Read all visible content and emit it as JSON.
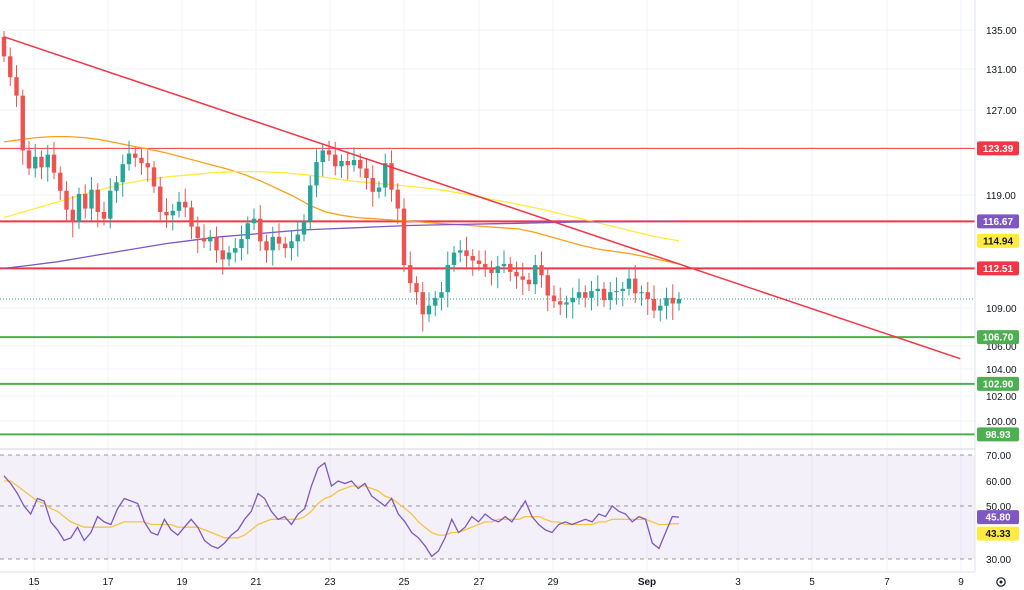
{
  "chart_data": {
    "type": "candlestick",
    "x_ticks": [
      "15",
      "17",
      "19",
      "21",
      "23",
      "25",
      "27",
      "29",
      "Sep",
      "3",
      "5",
      "7",
      "9"
    ],
    "price_axis": {
      "ticks": [
        "135.00",
        "131.00",
        "127.00",
        "119.00",
        "109.00",
        "106.00",
        "104.00",
        "102.00",
        "100.00"
      ],
      "ylim": [
        98,
        136
      ]
    },
    "rsi_axis": {
      "ticks": [
        "70.00",
        "60.00",
        "50.00",
        "30.00"
      ],
      "ylim": [
        28,
        73
      ],
      "band": [
        30,
        70
      ]
    },
    "levels": [
      {
        "label": "123.39",
        "value": 123.39,
        "color": "#f23645",
        "weight": "thin"
      },
      {
        "label": "116.67",
        "value": 116.67,
        "color": "#f23645",
        "weight": "thick"
      },
      {
        "label": "112.51",
        "value": 112.51,
        "color": "#f23645",
        "weight": "thick"
      },
      {
        "label": "106.70",
        "value": 106.7,
        "color": "#4caf50",
        "weight": "thick"
      },
      {
        "label": "102.90",
        "value": 102.9,
        "color": "#4caf50",
        "weight": "thick"
      },
      {
        "label": "98.93",
        "value": 98.93,
        "color": "#4caf50",
        "weight": "thick"
      }
    ],
    "badges": [
      {
        "label": "123.39",
        "value": 123.39,
        "bg": "#f23645",
        "fg": "#ffffff"
      },
      {
        "label": "116.67",
        "value": 116.67,
        "bg": "#7e57c2",
        "fg": "#ffffff"
      },
      {
        "label": "114.94",
        "value": 114.94,
        "bg": "#ffeb3b",
        "fg": "#131722"
      },
      {
        "label": "112.51",
        "value": 112.51,
        "bg": "#f23645",
        "fg": "#ffffff"
      },
      {
        "label": "106.70",
        "value": 106.7,
        "bg": "#4caf50",
        "fg": "#ffffff"
      },
      {
        "label": "102.90",
        "value": 102.9,
        "bg": "#4caf50",
        "fg": "#ffffff"
      },
      {
        "label": "98.93",
        "value": 98.93,
        "bg": "#4caf50",
        "fg": "#ffffff"
      }
    ],
    "rsi_badges": [
      {
        "label": "45.80",
        "value": 45.8,
        "bg": "#7e57c2",
        "fg": "#ffffff"
      },
      {
        "label": "43.33",
        "value": 43.33,
        "bg": "#ffeb3b",
        "fg": "#131722"
      }
    ],
    "trendline": {
      "from": [
        0,
        134.3
      ],
      "to": [
        153,
        104.9
      ],
      "color": "#f23645"
    },
    "close": [
      132.3,
      130.2,
      128.4,
      123.2,
      121.5,
      122.6,
      121.6,
      122.8,
      121.1,
      119.4,
      117.7,
      116.6,
      119.1,
      117.8,
      119.5,
      117.5,
      116.9,
      119.4,
      120.2,
      121.9,
      122.9,
      122.5,
      122.0,
      121.6,
      119.8,
      117.5,
      117.2,
      117.6,
      118.4,
      117.9,
      116.2,
      115.2,
      114.9,
      115.3,
      114.1,
      113.3,
      113.9,
      114.3,
      115.1,
      116.5,
      116.9,
      114.9,
      114.1,
      115.3,
      114.7,
      114.3,
      114.9,
      115.5,
      116.7,
      119.9,
      122.1,
      123.2,
      122.8,
      121.7,
      122.2,
      121.8,
      122.3,
      121.5,
      120.6,
      119.3,
      119.7,
      122.0,
      119.5,
      117.8,
      112.8,
      111.2,
      110.4,
      108.5,
      109.2,
      109.9,
      110.4,
      112.8,
      113.9,
      114.1,
      113.6,
      113.2,
      112.9,
      112.6,
      112.1,
      112.7,
      112.9,
      112.2,
      111.8,
      111.5,
      111.1,
      112.8,
      111.9,
      110.1,
      109.6,
      109.3,
      109.5,
      109.9,
      110.4,
      109.9,
      110.5,
      110.7,
      109.7,
      110.4,
      110.5,
      110.7,
      111.6,
      110.3,
      110.4,
      109.8,
      108.8,
      109.2,
      109.9,
      109.4,
      109.8
    ],
    "open": [
      134.3,
      132.3,
      130.2,
      128.4,
      123.2,
      121.5,
      122.6,
      121.6,
      122.8,
      121.1,
      119.4,
      117.7,
      116.6,
      119.1,
      117.8,
      119.5,
      117.5,
      116.9,
      119.4,
      120.2,
      121.9,
      122.9,
      122.5,
      122.0,
      121.6,
      119.8,
      117.5,
      117.2,
      117.6,
      118.4,
      117.9,
      116.2,
      115.2,
      114.9,
      115.3,
      114.1,
      113.3,
      113.9,
      114.3,
      115.1,
      116.5,
      116.9,
      114.9,
      114.1,
      115.3,
      114.7,
      114.3,
      114.9,
      115.5,
      116.7,
      119.9,
      122.1,
      123.2,
      122.8,
      121.7,
      122.2,
      121.8,
      122.3,
      121.5,
      120.6,
      119.3,
      119.7,
      122.0,
      119.5,
      117.8,
      112.8,
      111.2,
      110.4,
      108.5,
      109.2,
      109.9,
      110.4,
      112.8,
      113.9,
      114.1,
      113.6,
      113.2,
      112.9,
      112.6,
      112.1,
      112.7,
      112.9,
      112.2,
      111.8,
      111.5,
      111.1,
      112.8,
      111.9,
      110.1,
      109.6,
      109.3,
      109.5,
      109.9,
      110.4,
      109.9,
      110.5,
      110.7,
      109.7,
      110.4,
      110.5,
      110.7,
      111.6,
      110.3,
      110.4,
      109.8,
      108.8,
      109.2,
      109.9,
      109.4
    ],
    "rsi": [
      62,
      59,
      55,
      50,
      47,
      53,
      52,
      44,
      41,
      37,
      38,
      42,
      37,
      40,
      46,
      44,
      43,
      49,
      53,
      52,
      51,
      44,
      40,
      39,
      45,
      41,
      39,
      42,
      45,
      42,
      37,
      35,
      34,
      36,
      39,
      41,
      45,
      48,
      55,
      53,
      48,
      45,
      46,
      43,
      47,
      49,
      58,
      65,
      67,
      58,
      60,
      59,
      60,
      57,
      59,
      54,
      52,
      50,
      53,
      47,
      44,
      40,
      38,
      35,
      31,
      33,
      38,
      45,
      40,
      42,
      46,
      44,
      47,
      45,
      44,
      46,
      44,
      48,
      52,
      46,
      43,
      41,
      40,
      43,
      44,
      43,
      44,
      45,
      44,
      47,
      46,
      50,
      48,
      47,
      44,
      46,
      45,
      36,
      34,
      40,
      46,
      45.8
    ],
    "rsi_ma": [
      60,
      60,
      58,
      56,
      54,
      52,
      51,
      49,
      48,
      46,
      44,
      43,
      42,
      42,
      42,
      42,
      42,
      43,
      44,
      44,
      44,
      44,
      43,
      43,
      43,
      43,
      42,
      42,
      42,
      42,
      41,
      40,
      39,
      38,
      38,
      38,
      39,
      41,
      43,
      44,
      45,
      45,
      45,
      45,
      45,
      46,
      48,
      51,
      53,
      54,
      56,
      57,
      58,
      58,
      58,
      57,
      56,
      54,
      53,
      51,
      49,
      47,
      44,
      42,
      40,
      39,
      39,
      40,
      40,
      41,
      42,
      43,
      44,
      44,
      45,
      45,
      45,
      45,
      46,
      46,
      46,
      45,
      44,
      44,
      43,
      43,
      43,
      43,
      43,
      44,
      44,
      45,
      45,
      45,
      45,
      45,
      45,
      44,
      43,
      43,
      43.3,
      43.33
    ],
    "ma_orange": [
      124.0,
      124.2,
      124.4,
      124.5,
      124.5,
      124.4,
      124.2,
      123.9,
      123.6,
      123.3,
      123.0,
      122.6,
      122.2,
      121.8,
      121.4,
      120.9,
      120.3,
      119.6,
      118.9,
      118.1,
      117.5,
      117.2,
      117.0,
      116.9,
      116.8,
      116.7,
      116.6,
      116.5,
      116.4,
      116.3,
      116.2,
      116.1,
      116.0,
      115.7,
      115.3,
      114.9,
      114.5,
      114.2,
      114.0,
      113.8,
      113.5,
      113.2,
      112.9
    ],
    "ma_yellow": [
      117.0,
      117.6,
      118.2,
      118.8,
      119.4,
      120.0,
      120.4,
      120.7,
      120.9,
      121.1,
      121.2,
      121.2,
      121.1,
      120.9,
      120.6,
      120.3,
      120.1,
      119.9,
      119.7,
      119.4,
      119.0,
      118.6,
      118.2,
      117.8,
      117.3,
      116.8,
      116.3,
      115.8,
      115.3,
      114.94
    ],
    "ma_purple": [
      112.5,
      112.8,
      113.1,
      113.5,
      113.9,
      114.3,
      114.7,
      115.0,
      115.3,
      115.5,
      115.7,
      115.9,
      116.0,
      116.1,
      116.2,
      116.3,
      116.35,
      116.4,
      116.45,
      116.5,
      116.55,
      116.6,
      116.62,
      116.64,
      116.66,
      116.67
    ],
    "colors": {
      "up": "#26a69a",
      "down": "#ef5350",
      "rsi": "#7e57c2",
      "rsi_ma": "#f5c542",
      "ma_orange": "#f7a21b",
      "ma_yellow": "#ffeb3b",
      "ma_purple": "#7e57c2"
    }
  }
}
